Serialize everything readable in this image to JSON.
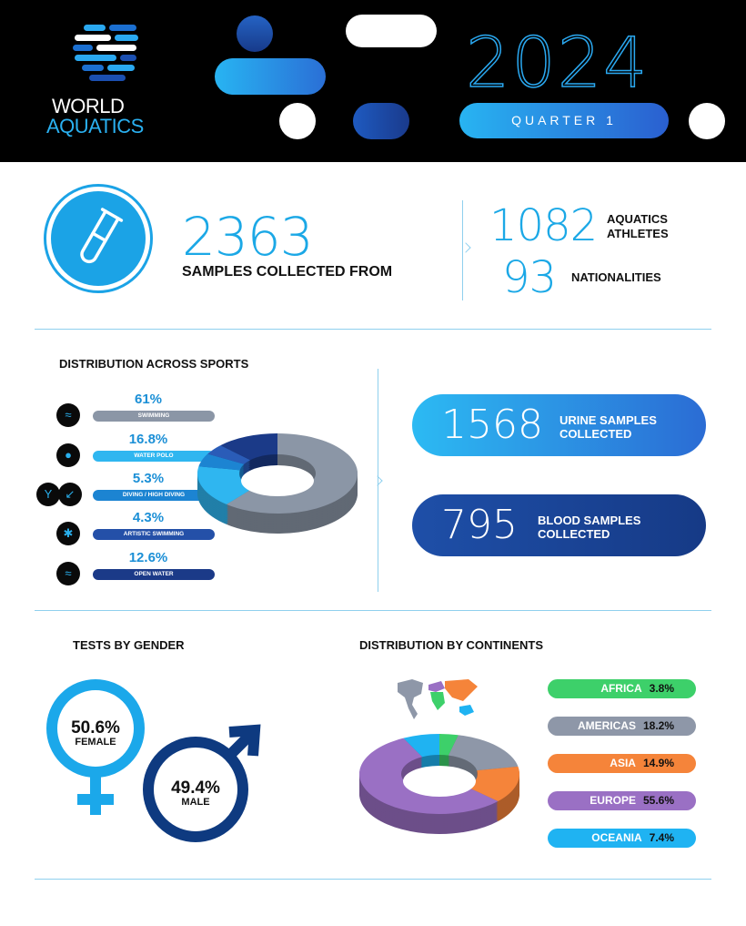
{
  "header": {
    "logo_line1": "WORLD",
    "logo_line2": "AQUATICS",
    "year": "2024",
    "quarter": "QUARTER 1"
  },
  "summary": {
    "icon": "test-tube-icon",
    "samples": "2363",
    "samples_label": "SAMPLES COLLECTED FROM",
    "athletes": "1082",
    "athletes_label_1": "AQUATICS",
    "athletes_label_2": "ATHLETES",
    "nationalities": "93",
    "nationalities_label": "NATIONALITIES"
  },
  "sports": {
    "title": "DISTRIBUTION ACROSS SPORTS",
    "items": [
      {
        "pct": "61%",
        "label": "SWIMMING",
        "icon": "swimming-icon"
      },
      {
        "pct": "16.8%",
        "label": "WATER POLO",
        "icon": "water-polo-icon"
      },
      {
        "pct": "5.3%",
        "label": "DIVING / HIGH DIVING",
        "icon": "diving-icon"
      },
      {
        "pct": "4.3%",
        "label": "ARTISTIC SWIMMING",
        "icon": "artistic-swimming-icon"
      },
      {
        "pct": "12.6%",
        "label": "OPEN WATER",
        "icon": "open-water-icon"
      }
    ]
  },
  "samples": {
    "urine": "1568",
    "urine_label_1": "URINE SAMPLES",
    "urine_label_2": "COLLECTED",
    "blood": "795",
    "blood_label_1": "BLOOD SAMPLES",
    "blood_label_2": "COLLECTED"
  },
  "gender": {
    "title": "TESTS BY GENDER",
    "female_pct": "50.6%",
    "female_label": "FEMALE",
    "male_pct": "49.4%",
    "male_label": "MALE"
  },
  "continents": {
    "title": "DISTRIBUTION BY CONTINENTS",
    "items": [
      {
        "name": "AFRICA",
        "pct": "3.8%"
      },
      {
        "name": "AMERICAS",
        "pct": "18.2%"
      },
      {
        "name": "ASIA",
        "pct": "14.9%"
      },
      {
        "name": "EUROPE",
        "pct": "55.6%"
      },
      {
        "name": "OCEANIA",
        "pct": "7.4%"
      }
    ]
  },
  "chart_data": [
    {
      "type": "pie",
      "title": "DISTRIBUTION ACROSS SPORTS",
      "categories": [
        "SWIMMING",
        "WATER POLO",
        "DIVING / HIGH DIVING",
        "ARTISTIC SWIMMING",
        "OPEN WATER"
      ],
      "values": [
        61,
        16.8,
        5.3,
        4.3,
        12.6
      ],
      "colors": [
        "#8b96a6",
        "#2fb6f0",
        "#1c84d2",
        "#2a5cb8",
        "#1b3a88"
      ],
      "style": "3d-donut"
    },
    {
      "type": "pie",
      "title": "DISTRIBUTION BY CONTINENTS",
      "categories": [
        "AFRICA",
        "AMERICAS",
        "ASIA",
        "EUROPE",
        "OCEANIA"
      ],
      "values": [
        3.8,
        18.2,
        14.9,
        55.6,
        7.4
      ],
      "colors": [
        "#3dd06a",
        "#8e97a8",
        "#f5843a",
        "#9a70c4",
        "#1fb3f2"
      ],
      "style": "3d-donut"
    },
    {
      "type": "bar",
      "title": "TESTS BY GENDER",
      "categories": [
        "FEMALE",
        "MALE"
      ],
      "values": [
        50.6,
        49.4
      ]
    }
  ]
}
